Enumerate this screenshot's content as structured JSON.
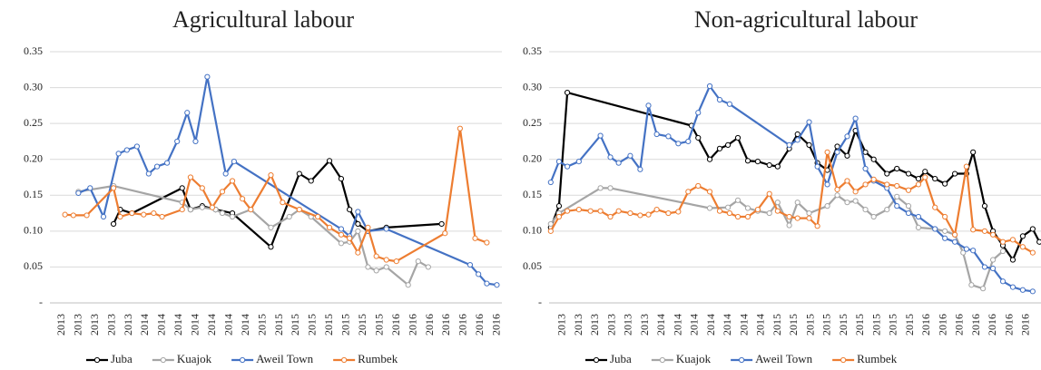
{
  "chart_data": [
    {
      "type": "line",
      "title": "Agricultural labour",
      "xlim": [
        -0.5,
        26.5
      ],
      "xticks": [
        {
          "value": 0,
          "label": "2013"
        },
        {
          "value": 1,
          "label": "2013"
        },
        {
          "value": 2,
          "label": "2013"
        },
        {
          "value": 3,
          "label": "2013"
        },
        {
          "value": 4,
          "label": "2013"
        },
        {
          "value": 5,
          "label": "2014"
        },
        {
          "value": 6,
          "label": "2014"
        },
        {
          "value": 7,
          "label": "2014"
        },
        {
          "value": 8,
          "label": "2014"
        },
        {
          "value": 9,
          "label": "2014"
        },
        {
          "value": 10,
          "label": "2014"
        },
        {
          "value": 11,
          "label": "2014"
        },
        {
          "value": 12,
          "label": "2015"
        },
        {
          "value": 13,
          "label": "2015"
        },
        {
          "value": 14,
          "label": "2015"
        },
        {
          "value": 15,
          "label": "2015"
        },
        {
          "value": 16,
          "label": "2015"
        },
        {
          "value": 17,
          "label": "2015"
        },
        {
          "value": 18,
          "label": "2015"
        },
        {
          "value": 19,
          "label": "2015"
        },
        {
          "value": 20,
          "label": "2016"
        },
        {
          "value": 21,
          "label": "2016"
        },
        {
          "value": 22,
          "label": "2016"
        },
        {
          "value": 23,
          "label": "2016"
        },
        {
          "value": 24,
          "label": "2016"
        },
        {
          "value": 25,
          "label": "2016"
        },
        {
          "value": 26,
          "label": "2016"
        }
      ],
      "ylim": [
        0,
        0.35
      ],
      "yticks": [
        {
          "value": 0,
          "label": "-"
        },
        0.05,
        {
          "value": 0.1,
          "label": "0.10"
        },
        0.15,
        {
          "value": 0.2,
          "label": "0.20"
        },
        0.25,
        {
          "value": 0.3,
          "label": "0.30"
        },
        0.35
      ],
      "grid": true,
      "legend": "bottom",
      "series": [
        {
          "name": "Juba",
          "color": "#000000",
          "x": [
            3.3,
            3.7,
            4.4,
            7.4,
            7.9,
            8.6,
            9.4,
            10.4,
            12.7,
            14.4,
            15.1,
            16.2,
            16.9,
            17.4,
            17.9,
            18.5,
            19.6,
            22.9
          ],
          "values": [
            0.11,
            0.13,
            0.125,
            0.16,
            0.13,
            0.135,
            0.13,
            0.125,
            0.078,
            0.18,
            0.17,
            0.198,
            0.173,
            0.13,
            0.11,
            0.1,
            0.105,
            0.11
          ]
        },
        {
          "name": "Kuajok",
          "color": "#a5a5a5",
          "x": [
            1.2,
            3.3,
            7.4,
            7.9,
            8.6,
            9.4,
            9.8,
            10.4,
            11.5,
            12.7,
            13.8,
            14.4,
            15.1,
            16.9,
            17.4,
            17.9,
            18.5,
            19,
            19.6,
            20.9,
            21.5,
            22.1
          ],
          "values": [
            0.155,
            0.163,
            0.14,
            0.13,
            0.133,
            0.13,
            0.125,
            0.12,
            0.13,
            0.105,
            0.12,
            0.13,
            0.12,
            0.083,
            0.085,
            0.1,
            0.05,
            0.045,
            0.05,
            0.025,
            0.058,
            0.05
          ]
        },
        {
          "name": "Aweil Town",
          "color": "#4472c4",
          "x": [
            1.2,
            1.9,
            2.7,
            3.6,
            4.1,
            4.7,
            5.4,
            5.9,
            6.5,
            7.1,
            7.7,
            8.2,
            8.9,
            10,
            10.5,
            16.9,
            17.4,
            17.9,
            18.5,
            19.6,
            24.6,
            25.1,
            25.6,
            26.2
          ],
          "values": [
            0.153,
            0.16,
            0.12,
            0.208,
            0.213,
            0.218,
            0.18,
            0.19,
            0.195,
            0.225,
            0.265,
            0.225,
            0.315,
            0.18,
            0.197,
            0.103,
            0.093,
            0.127,
            0.1,
            0.103,
            0.053,
            0.04,
            0.027,
            0.025
          ]
        },
        {
          "name": "Rumbek",
          "color": "#ed7d31",
          "x": [
            0.4,
            0.9,
            1.7,
            3.3,
            3.7,
            4.4,
            5.1,
            5.7,
            6.2,
            7.4,
            7.9,
            8.6,
            9.2,
            9.8,
            10.4,
            11,
            11.5,
            12.7,
            13.4,
            14.4,
            15.5,
            16.2,
            16.9,
            17.4,
            17.9,
            18.5,
            19,
            19.6,
            20.2,
            23.1,
            24,
            24.9,
            25.6
          ],
          "values": [
            0.123,
            0.122,
            0.122,
            0.16,
            0.12,
            0.125,
            0.123,
            0.125,
            0.12,
            0.13,
            0.175,
            0.16,
            0.133,
            0.155,
            0.17,
            0.145,
            0.13,
            0.178,
            0.14,
            0.13,
            0.12,
            0.105,
            0.095,
            0.09,
            0.07,
            0.105,
            0.065,
            0.06,
            0.058,
            0.097,
            0.243,
            0.09,
            0.084
          ]
        }
      ]
    },
    {
      "type": "line",
      "title": "Non-agricultural labour",
      "xlim": [
        -0.6,
        29.1
      ],
      "xticks": [
        {
          "value": 0,
          "label": "2013"
        },
        {
          "value": 1,
          "label": "2013"
        },
        {
          "value": 2,
          "label": "2013"
        },
        {
          "value": 3,
          "label": "2013"
        },
        {
          "value": 4,
          "label": "2013"
        },
        {
          "value": 5,
          "label": "2013"
        },
        {
          "value": 6,
          "label": "2014"
        },
        {
          "value": 7,
          "label": "2014"
        },
        {
          "value": 8,
          "label": "2014"
        },
        {
          "value": 9,
          "label": "2014"
        },
        {
          "value": 10,
          "label": "2014"
        },
        {
          "value": 11,
          "label": "2014"
        },
        {
          "value": 12,
          "label": "2014"
        },
        {
          "value": 13,
          "label": "2015"
        },
        {
          "value": 14,
          "label": "2015"
        },
        {
          "value": 15,
          "label": "2015"
        },
        {
          "value": 16,
          "label": "2015"
        },
        {
          "value": 17,
          "label": "2015"
        },
        {
          "value": 18,
          "label": "2015"
        },
        {
          "value": 19,
          "label": "2015"
        },
        {
          "value": 20,
          "label": "2015"
        },
        {
          "value": 21,
          "label": "2015"
        },
        {
          "value": 22,
          "label": "2016"
        },
        {
          "value": 23,
          "label": "2016"
        },
        {
          "value": 24,
          "label": "2016"
        },
        {
          "value": 25,
          "label": "2016"
        },
        {
          "value": 26,
          "label": "2016"
        },
        {
          "value": 27,
          "label": "2016"
        },
        {
          "value": 28,
          "label": "2016"
        }
      ],
      "ylim": [
        0,
        0.35
      ],
      "yticks": [
        {
          "value": 0,
          "label": "-"
        },
        0.05,
        {
          "value": 0.1,
          "label": "0.10"
        },
        0.15,
        {
          "value": 0.2,
          "label": "0.20"
        },
        0.25,
        {
          "value": 0.3,
          "label": "0.30"
        },
        0.35
      ],
      "grid": true,
      "legend": "bottom",
      "series": [
        {
          "name": "Juba",
          "color": "#000000",
          "x": [
            -0.5,
            0,
            0.5,
            8,
            8.4,
            9.1,
            9.7,
            10.2,
            10.8,
            11.4,
            12,
            12.7,
            13.2,
            13.9,
            14.4,
            15.1,
            15.6,
            16.2,
            16.8,
            17.4,
            17.9,
            18.5,
            19,
            19.8,
            20.4,
            21.1,
            21.7,
            22.1,
            22.7,
            23.3,
            23.9,
            24.6,
            25,
            25.7,
            26.2,
            26.8,
            27.4,
            28,
            28.6,
            29
          ],
          "values": [
            0.105,
            0.135,
            0.293,
            0.247,
            0.23,
            0.2,
            0.215,
            0.22,
            0.23,
            0.198,
            0.197,
            0.192,
            0.19,
            0.215,
            0.235,
            0.22,
            0.195,
            0.185,
            0.218,
            0.205,
            0.24,
            0.21,
            0.2,
            0.18,
            0.187,
            0.18,
            0.173,
            0.183,
            0.173,
            0.166,
            0.18,
            0.18,
            0.21,
            0.135,
            0.1,
            0.08,
            0.06,
            0.093,
            0.103,
            0.085
          ]
        },
        {
          "name": "Kuajok",
          "color": "#a5a5a5",
          "x": [
            -0.5,
            0,
            2.5,
            3.1,
            9.1,
            10.2,
            10.8,
            11.4,
            12,
            12.7,
            13.2,
            13.9,
            14.4,
            15.1,
            16.2,
            16.8,
            17.4,
            17.9,
            18.5,
            19,
            19.8,
            20.4,
            21.1,
            21.7,
            22.7,
            23.3,
            23.9,
            24.4,
            24.9,
            25.6,
            26.2,
            26.8
          ],
          "values": [
            0.11,
            0.125,
            0.16,
            0.16,
            0.132,
            0.133,
            0.143,
            0.132,
            0.128,
            0.125,
            0.14,
            0.108,
            0.14,
            0.125,
            0.135,
            0.15,
            0.14,
            0.142,
            0.13,
            0.12,
            0.13,
            0.148,
            0.135,
            0.105,
            0.103,
            0.1,
            0.095,
            0.07,
            0.025,
            0.02,
            0.06,
            0.072
          ]
        },
        {
          "name": "Aweil Town",
          "color": "#4472c4",
          "x": [
            -0.5,
            0,
            0.5,
            1.2,
            2.5,
            3.1,
            3.6,
            4.3,
            4.9,
            5.4,
            5.9,
            6.6,
            7.2,
            7.8,
            8.4,
            9.1,
            9.7,
            10.3,
            13.9,
            14.4,
            15.1,
            15.6,
            16.2,
            16.8,
            17.4,
            17.9,
            18.5,
            19,
            19.8,
            20.4,
            21.1,
            21.7,
            22.7,
            23.3,
            23.9,
            24.6,
            25,
            25.7,
            26.2,
            26.8,
            27.4,
            28,
            28.6
          ],
          "values": [
            0.168,
            0.197,
            0.19,
            0.197,
            0.233,
            0.203,
            0.195,
            0.205,
            0.186,
            0.275,
            0.235,
            0.232,
            0.222,
            0.225,
            0.265,
            0.302,
            0.283,
            0.277,
            0.22,
            0.227,
            0.252,
            0.19,
            0.165,
            0.21,
            0.232,
            0.257,
            0.187,
            0.17,
            0.16,
            0.135,
            0.125,
            0.12,
            0.103,
            0.09,
            0.085,
            0.075,
            0.073,
            0.05,
            0.048,
            0.03,
            0.022,
            0.018,
            0.016
          ]
        },
        {
          "name": "Rumbek",
          "color": "#ed7d31",
          "x": [
            -0.5,
            0,
            0.5,
            1.2,
            1.9,
            2.5,
            3.1,
            3.6,
            4.3,
            4.9,
            5.4,
            5.9,
            6.6,
            7.2,
            7.8,
            8.4,
            9.1,
            9.7,
            10.3,
            10.8,
            11.4,
            12,
            12.7,
            13.2,
            13.9,
            14.4,
            15.1,
            15.6,
            16.2,
            16.8,
            17.4,
            17.9,
            18.5,
            19,
            19.8,
            20.4,
            21.1,
            21.7,
            22.1,
            22.7,
            23.3,
            23.9,
            24.6,
            25,
            25.7,
            26.2,
            26.8,
            27.4,
            28,
            28.6
          ],
          "values": [
            0.1,
            0.12,
            0.128,
            0.13,
            0.128,
            0.128,
            0.12,
            0.128,
            0.125,
            0.122,
            0.123,
            0.13,
            0.125,
            0.127,
            0.155,
            0.163,
            0.155,
            0.128,
            0.125,
            0.12,
            0.12,
            0.13,
            0.152,
            0.128,
            0.12,
            0.118,
            0.118,
            0.107,
            0.21,
            0.158,
            0.17,
            0.155,
            0.165,
            0.172,
            0.165,
            0.163,
            0.157,
            0.165,
            0.175,
            0.133,
            0.12,
            0.095,
            0.19,
            0.102,
            0.1,
            0.095,
            0.085,
            0.088,
            0.078,
            0.07
          ]
        }
      ]
    }
  ]
}
